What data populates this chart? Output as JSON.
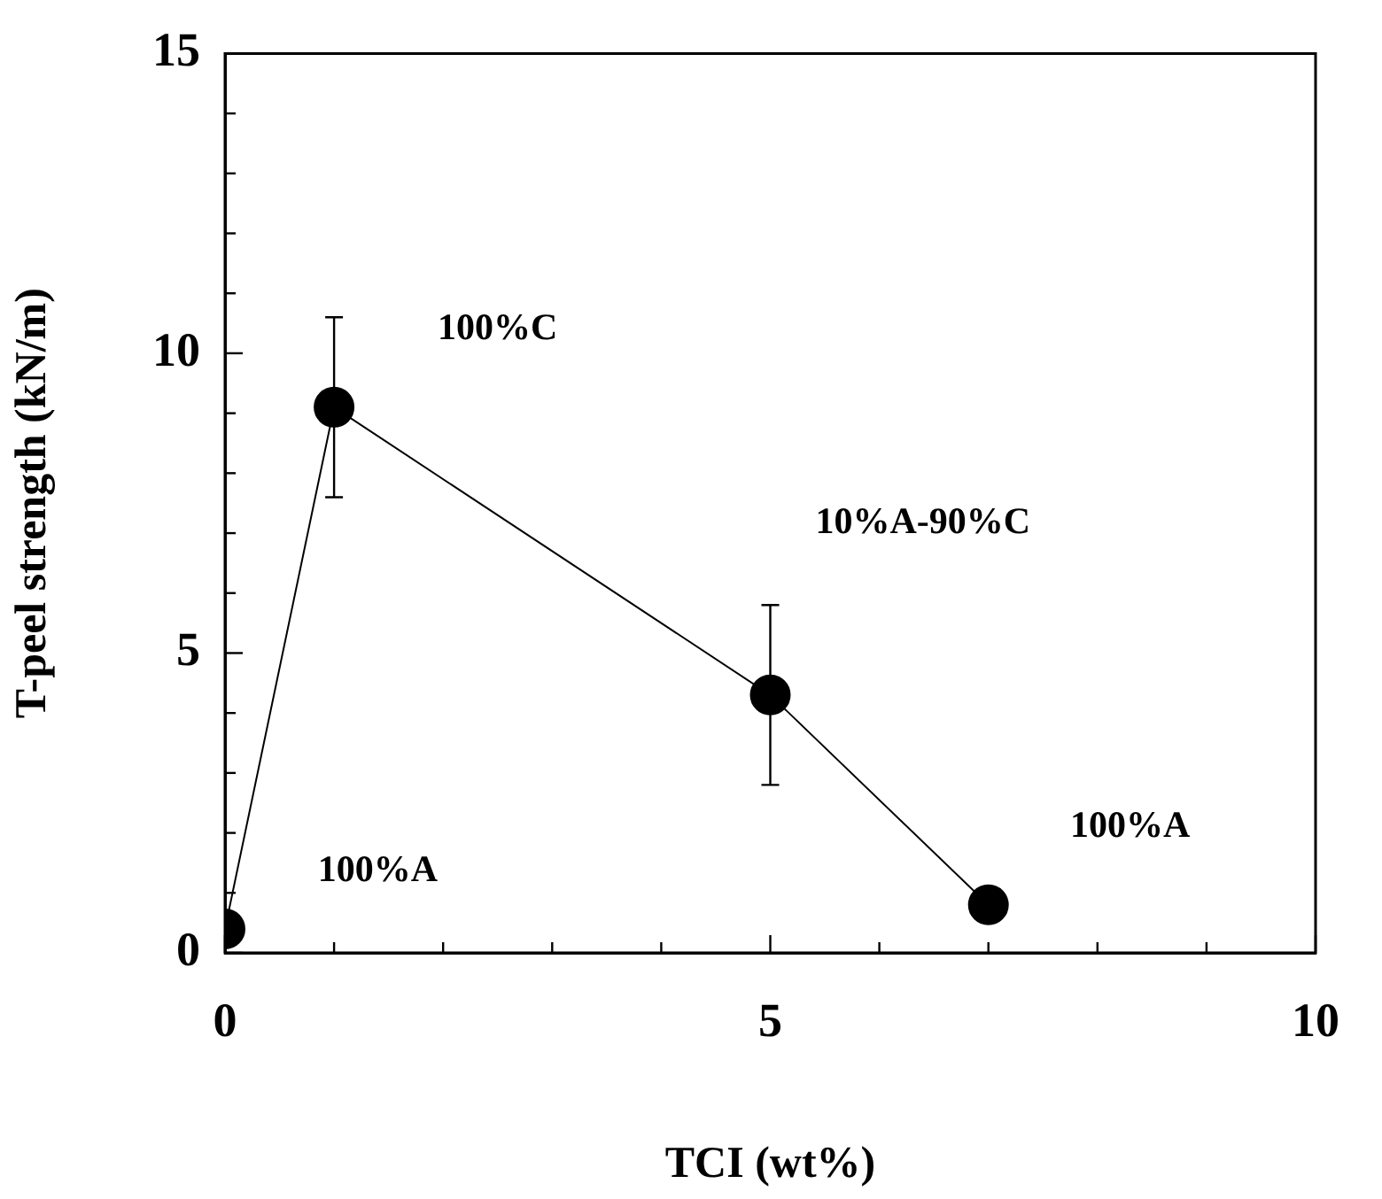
{
  "chart_data": {
    "type": "line",
    "xlabel": "TCI (wt%)",
    "ylabel": "T-peel strength (kN/m)",
    "x": [
      0,
      1,
      5,
      7
    ],
    "series": [
      {
        "color": "#000000",
        "values": [
          0.4,
          9.1,
          4.3,
          0.8
        ],
        "errors": [
          null,
          1.5,
          1.5,
          null
        ]
      }
    ],
    "xlim": [
      0,
      10
    ],
    "xticks": [
      0,
      {
        "value": 1,
        "label": null
      },
      {
        "value": 2,
        "label": null
      },
      {
        "value": 3,
        "label": null
      },
      {
        "value": 4,
        "label": null
      },
      5,
      {
        "value": 6,
        "label": null
      },
      {
        "value": 7,
        "label": null
      },
      {
        "value": 8,
        "label": null
      },
      {
        "value": 9,
        "label": null
      },
      10
    ],
    "ylim": [
      0,
      15
    ],
    "yticks": [
      0,
      {
        "value": 1,
        "label": null
      },
      {
        "value": 2,
        "label": null
      },
      {
        "value": 3,
        "label": null
      },
      {
        "value": 4,
        "label": null
      },
      5,
      {
        "value": 6,
        "label": null
      },
      {
        "value": 7,
        "label": null
      },
      {
        "value": 8,
        "label": null
      },
      {
        "value": 9,
        "label": null
      },
      10,
      {
        "value": 11,
        "label": null
      },
      {
        "value": 12,
        "label": null
      },
      {
        "value": 13,
        "label": null
      },
      {
        "value": 14,
        "label": null
      },
      15
    ],
    "annotations": [
      "100%A",
      "100%C",
      "10%A-90%C",
      "100%A"
    ],
    "grid": false,
    "legend": false,
    "marker": "circle",
    "line_style": "solid"
  }
}
